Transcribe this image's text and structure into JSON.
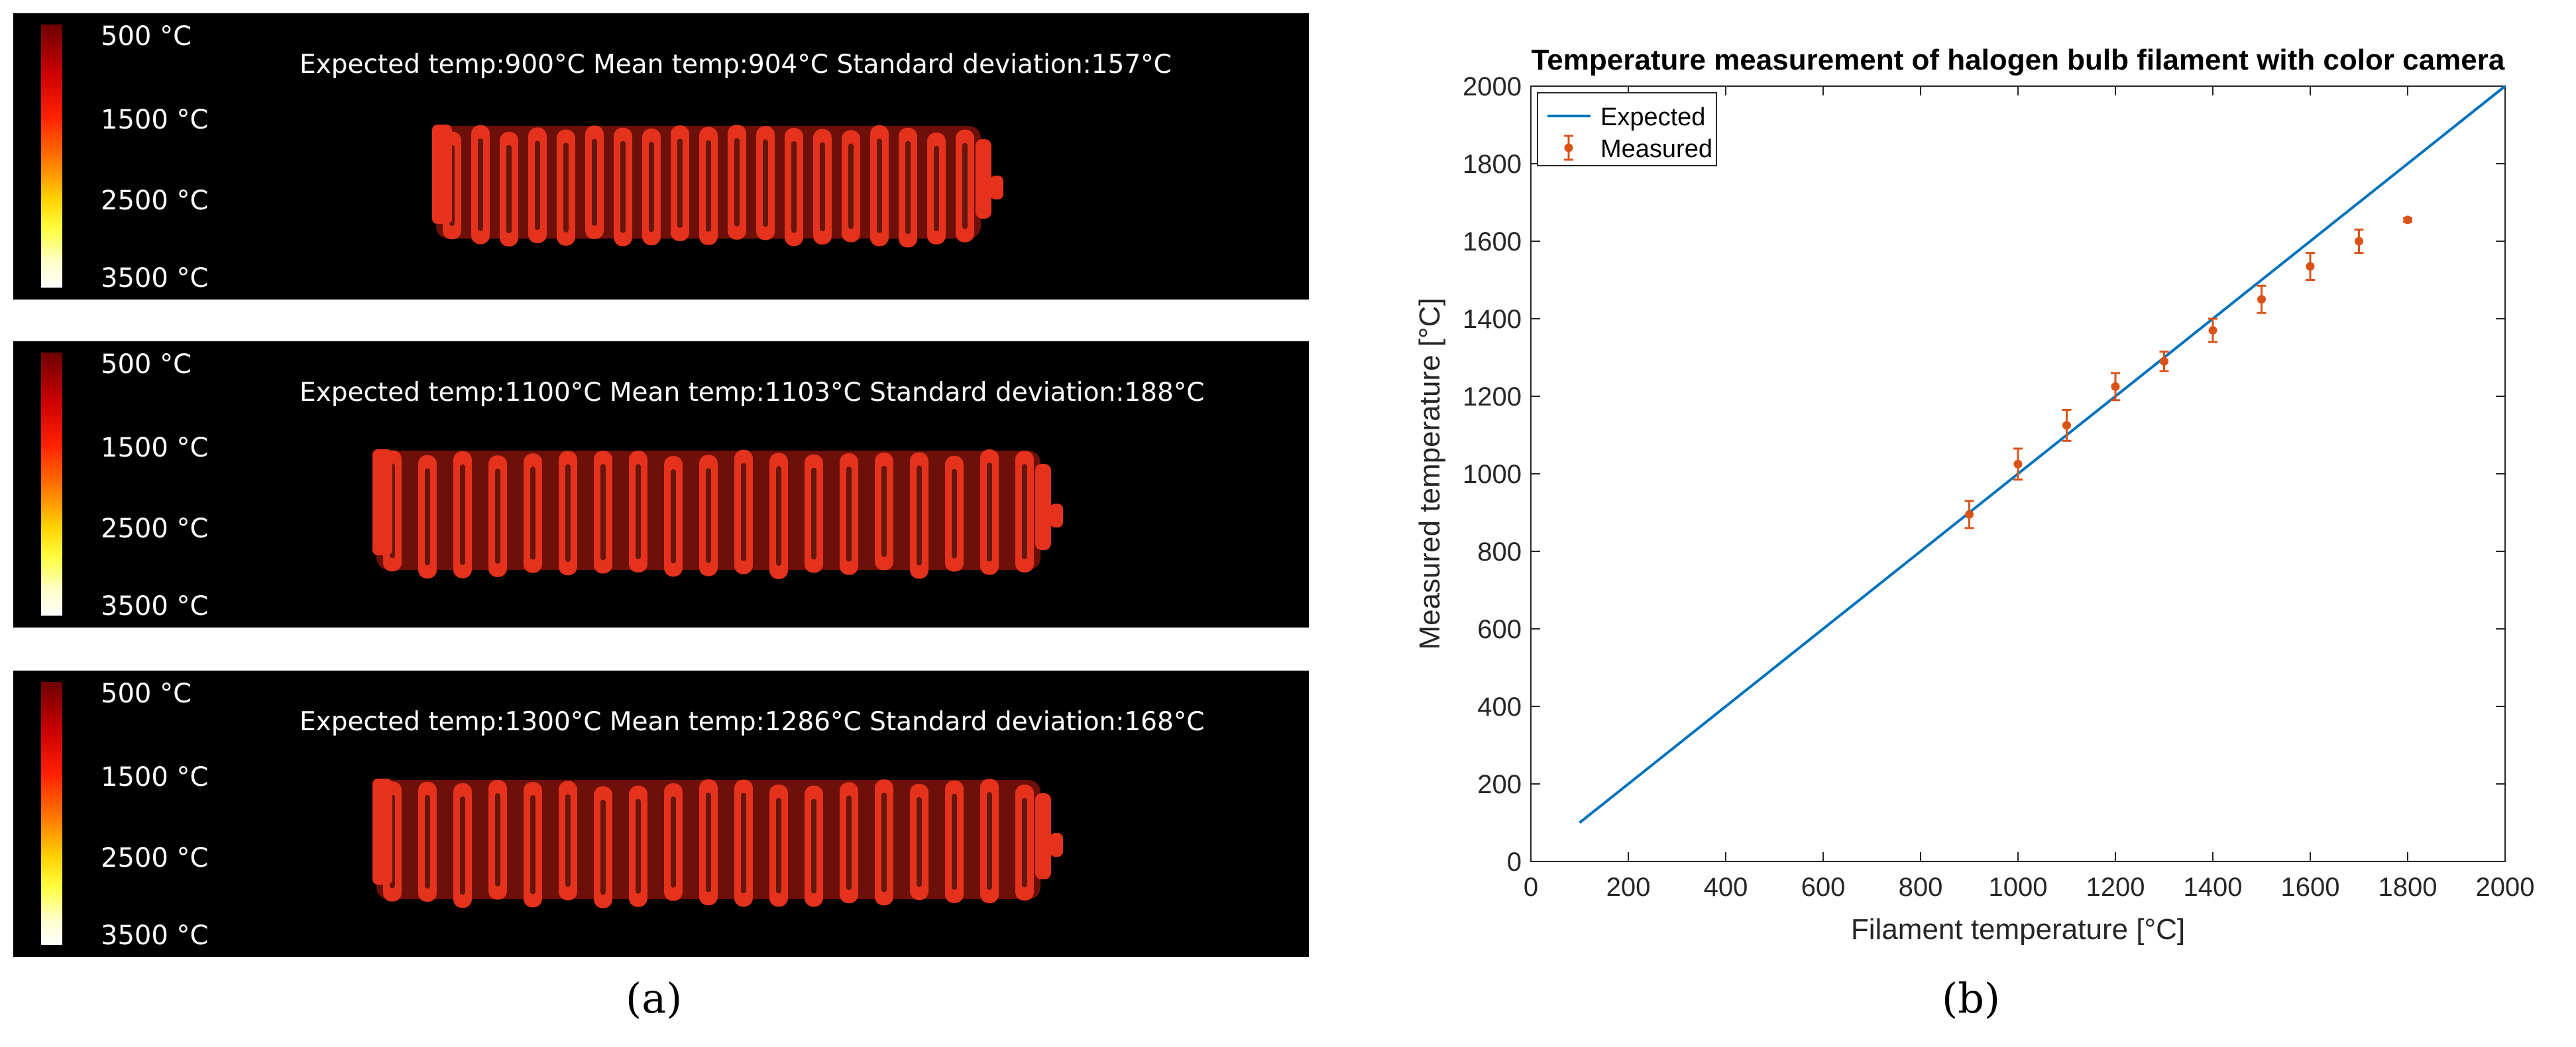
{
  "panels": [
    {
      "colorbar_labels": [
        "500 °C",
        "1500 °C",
        "2500 °C",
        "3500 °C"
      ],
      "title": "Expected temp:900°C Mean temp:904°C Standard deviation:157°C"
    },
    {
      "colorbar_labels": [
        "500 °C",
        "1500 °C",
        "2500 °C",
        "3500 °C"
      ],
      "title": "Expected temp:1100°C Mean temp:1103°C Standard deviation:188°C"
    },
    {
      "colorbar_labels": [
        "500 °C",
        "1500 °C",
        "2500 °C",
        "3500 °C"
      ],
      "title": "Expected temp:1300°C Mean temp:1286°C Standard deviation:168°C"
    }
  ],
  "captions": {
    "a": "(a)",
    "b": "(b)"
  },
  "colors": {
    "expected": "#0072bd",
    "measured": "#d95319",
    "filament": "#e5321c"
  },
  "chart_data": {
    "type": "scatter",
    "title": "Temperature measurement of halogen bulb filament with color camera",
    "xlabel": "Filament temperature [°C]",
    "ylabel": "Measured temperature [°C]",
    "xlim": [
      0,
      2000
    ],
    "ylim": [
      0,
      2000
    ],
    "xticks": [
      0,
      200,
      400,
      600,
      800,
      1000,
      1200,
      1400,
      1600,
      1800,
      2000
    ],
    "yticks": [
      0,
      200,
      400,
      600,
      800,
      1000,
      1200,
      1400,
      1600,
      1800,
      2000
    ],
    "legend": {
      "position": "top-left",
      "entries": [
        "Expected",
        "Measured"
      ]
    },
    "series": [
      {
        "name": "Expected",
        "type": "line",
        "x": [
          100,
          2000
        ],
        "y": [
          100,
          2000
        ]
      },
      {
        "name": "Measured",
        "type": "errorbar",
        "x": [
          900,
          1000,
          1100,
          1200,
          1300,
          1400,
          1500,
          1600,
          1700,
          1800
        ],
        "y": [
          895,
          1025,
          1125,
          1225,
          1290,
          1370,
          1450,
          1535,
          1600,
          1655
        ],
        "err": [
          35,
          40,
          40,
          35,
          25,
          30,
          35,
          35,
          30,
          5
        ]
      }
    ]
  }
}
